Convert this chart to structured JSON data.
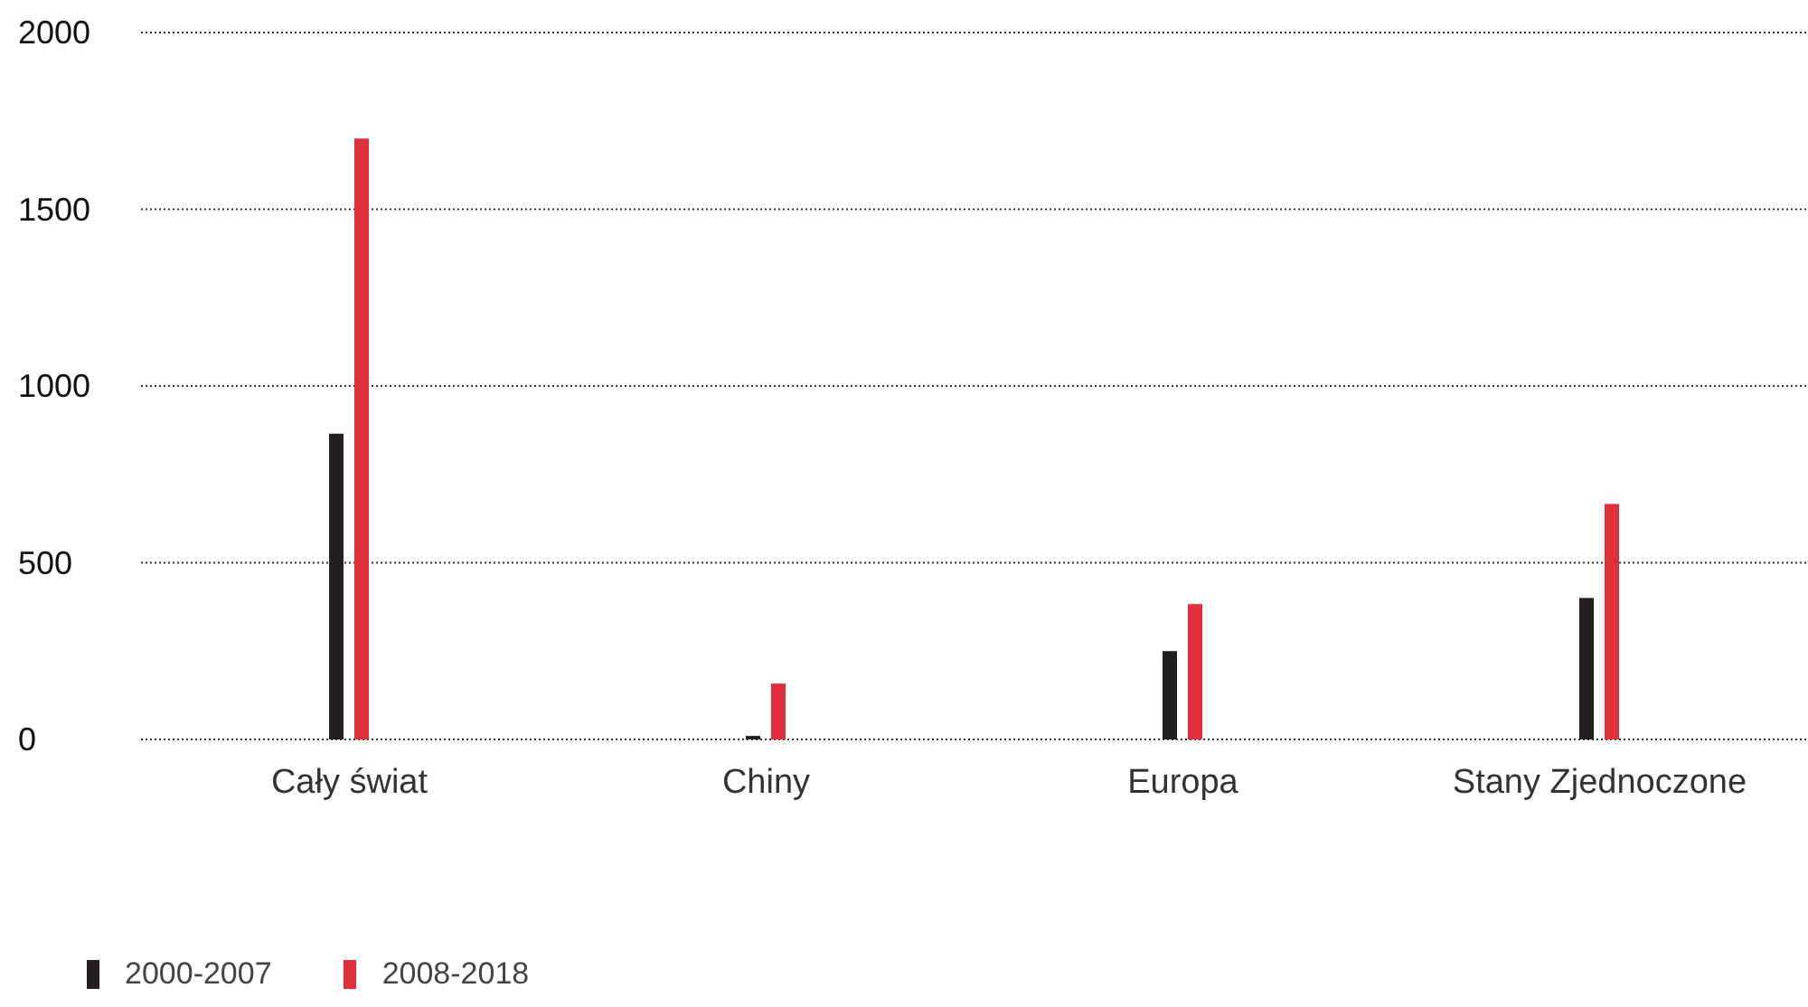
{
  "chart_data": {
    "type": "bar",
    "categories": [
      "Cały świat",
      "Chiny",
      "Europa",
      "Stany Zjednoczone"
    ],
    "series": [
      {
        "name": "2000-2007",
        "color": "#231f20",
        "values": [
          865,
          10,
          250,
          400
        ]
      },
      {
        "name": "2008-2018",
        "color": "#e02f3a",
        "values": [
          1700,
          158,
          383,
          666
        ]
      }
    ],
    "ylim": [
      0,
      2000
    ],
    "yticks": [
      0,
      500,
      1000,
      1500,
      2000
    ],
    "grid": "y",
    "legend": "bottom left"
  }
}
